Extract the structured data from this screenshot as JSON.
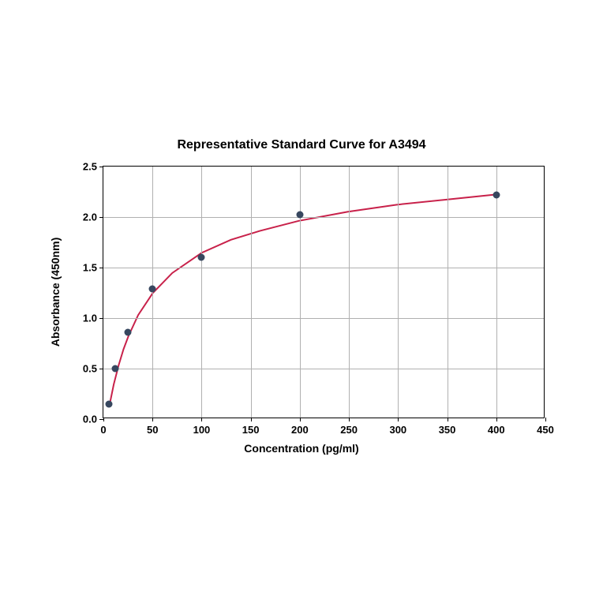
{
  "chart": {
    "type": "scatter-with-curve",
    "title": "Representative Standard Curve for A3494",
    "title_fontsize": 16,
    "xlabel": "Concentration (pg/ml)",
    "ylabel": "Absorbance (450nm)",
    "label_fontsize": 14,
    "tick_fontsize": 13,
    "xlim": [
      0,
      450
    ],
    "ylim": [
      0,
      2.5
    ],
    "xticks": [
      0,
      50,
      100,
      150,
      200,
      250,
      300,
      350,
      400,
      450
    ],
    "yticks": [
      0,
      0.5,
      1.0,
      1.5,
      2.0,
      2.5
    ],
    "ytick_labels": [
      "0.0",
      "0.5",
      "1.0",
      "1.5",
      "2.0",
      "2.5"
    ],
    "background_color": "#ffffff",
    "grid_color": "#b0b0b0",
    "border_color": "#000000",
    "data_points": {
      "x": [
        6,
        12,
        25,
        50,
        100,
        200,
        400
      ],
      "y": [
        0.15,
        0.5,
        0.86,
        1.29,
        1.6,
        2.02,
        2.22
      ]
    },
    "marker_color": "#37475f",
    "marker_size": 9,
    "curve_color": "#c8214a",
    "curve_width": 2,
    "curve_points": {
      "x": [
        6,
        10,
        15,
        20,
        25,
        35,
        50,
        70,
        100,
        130,
        160,
        200,
        250,
        300,
        350,
        400
      ],
      "y": [
        0.14,
        0.33,
        0.52,
        0.68,
        0.81,
        1.02,
        1.24,
        1.44,
        1.64,
        1.77,
        1.86,
        1.96,
        2.05,
        2.12,
        2.17,
        2.22
      ]
    }
  }
}
